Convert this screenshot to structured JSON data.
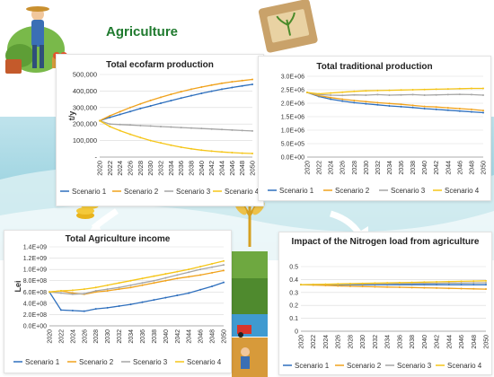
{
  "section_title": "Agriculture",
  "colors": {
    "s1": "#2e6fbd",
    "s2": "#f0a21c",
    "s3": "#a6a6a6",
    "s4": "#f5c518",
    "title_green": "#1f7a2e"
  },
  "chart_data": [
    {
      "type": "line",
      "title": "Total ecofarm production",
      "ylabel": "t/y",
      "ylim": [
        0,
        500000
      ],
      "yticks": [
        "-",
        "100,000",
        "200,000",
        "300,000",
        "400,000",
        "500,000"
      ],
      "x": [
        2020,
        2022,
        2024,
        2026,
        2028,
        2030,
        2032,
        2034,
        2036,
        2038,
        2040,
        2042,
        2044,
        2046,
        2048,
        2050
      ],
      "xticks": [
        "2020",
        "2022",
        "2024",
        "2026",
        "2028",
        "2030",
        "2032",
        "2034",
        "2036",
        "2038",
        "2040",
        "2042",
        "2044",
        "2046",
        "2048",
        "2050"
      ],
      "legend": "bottom",
      "series": [
        {
          "name": "Scenario 1",
          "values": [
            220000,
            240000,
            258000,
            276000,
            294000,
            310000,
            326000,
            342000,
            357000,
            372000,
            386000,
            399000,
            411000,
            421000,
            431000,
            440000
          ]
        },
        {
          "name": "Scenario 2",
          "values": [
            220000,
            250000,
            275000,
            300000,
            322000,
            343000,
            362000,
            380000,
            396000,
            411000,
            424000,
            436000,
            447000,
            456000,
            463000,
            470000
          ]
        },
        {
          "name": "Scenario 3",
          "values": [
            220000,
            200000,
            197000,
            194000,
            191000,
            188000,
            185000,
            182000,
            179000,
            176000,
            173000,
            170000,
            167000,
            164000,
            161000,
            158000
          ]
        },
        {
          "name": "Scenario 4",
          "values": [
            220000,
            185000,
            160000,
            138000,
            118000,
            100000,
            86000,
            72000,
            60000,
            50000,
            42000,
            36000,
            31000,
            27000,
            24000,
            22000
          ]
        }
      ]
    },
    {
      "type": "line",
      "title": "Total traditional production",
      "ylabel": "",
      "ylim": [
        0,
        3000000
      ],
      "yticks": [
        "0.0E+00",
        "5.0E+05",
        "1.0E+06",
        "1.5E+06",
        "2.0E+06",
        "2.5E+06",
        "3.0E+06"
      ],
      "x": [
        2020,
        2022,
        2024,
        2026,
        2028,
        2030,
        2032,
        2034,
        2036,
        2038,
        2040,
        2042,
        2044,
        2046,
        2048,
        2050
      ],
      "xticks": [
        "2020",
        "2022",
        "2024",
        "2026",
        "2028",
        "2030",
        "2032",
        "2034",
        "2036",
        "2038",
        "2040",
        "2042",
        "2044",
        "2046",
        "2048",
        "2050"
      ],
      "legend": "bottom",
      "series": [
        {
          "name": "Scenario 1",
          "values": [
            2400000,
            2250000,
            2150000,
            2080000,
            2020000,
            1980000,
            1940000,
            1900000,
            1870000,
            1840000,
            1800000,
            1770000,
            1740000,
            1710000,
            1680000,
            1650000
          ]
        },
        {
          "name": "Scenario 2",
          "values": [
            2400000,
            2280000,
            2210000,
            2150000,
            2100000,
            2060000,
            2020000,
            1990000,
            1960000,
            1920000,
            1880000,
            1860000,
            1830000,
            1800000,
            1770000,
            1730000
          ]
        },
        {
          "name": "Scenario 3",
          "values": [
            2400000,
            2320000,
            2300000,
            2290000,
            2310000,
            2300000,
            2320000,
            2300000,
            2310000,
            2320000,
            2300000,
            2310000,
            2320000,
            2330000,
            2320000,
            2300000
          ]
        },
        {
          "name": "Scenario 4",
          "values": [
            2400000,
            2350000,
            2380000,
            2410000,
            2440000,
            2460000,
            2470000,
            2480000,
            2490000,
            2500000,
            2510000,
            2520000,
            2530000,
            2540000,
            2550000,
            2550000
          ]
        }
      ]
    },
    {
      "type": "line",
      "title": "Total Agriculture income",
      "ylabel": "Lei",
      "ylim": [
        0,
        1400000000
      ],
      "yticks": [
        "0.0E+00",
        "2.0E+08",
        "4.0E+08",
        "6.0E+08",
        "8.0E+08",
        "1.0E+09",
        "1.2E+09",
        "1.4E+09"
      ],
      "x": [
        2020,
        2022,
        2024,
        2026,
        2028,
        2030,
        2032,
        2034,
        2036,
        2038,
        2040,
        2042,
        2044,
        2046,
        2048,
        2050
      ],
      "xticks": [
        "2020",
        "2022",
        "2024",
        "2026",
        "2028",
        "2030",
        "2032",
        "2034",
        "2036",
        "2038",
        "2040",
        "2042",
        "2044",
        "2046",
        "2048",
        "2050"
      ],
      "legend": "bottom",
      "series": [
        {
          "name": "Scenario 1",
          "values": [
            600000000,
            280000000,
            270000000,
            260000000,
            300000000,
            320000000,
            350000000,
            380000000,
            420000000,
            460000000,
            500000000,
            540000000,
            580000000,
            640000000,
            700000000,
            770000000
          ]
        },
        {
          "name": "Scenario 2",
          "values": [
            600000000,
            620000000,
            580000000,
            560000000,
            600000000,
            620000000,
            650000000,
            680000000,
            720000000,
            760000000,
            800000000,
            840000000,
            870000000,
            900000000,
            940000000,
            980000000
          ]
        },
        {
          "name": "Scenario 3",
          "values": [
            600000000,
            580000000,
            560000000,
            570000000,
            620000000,
            650000000,
            680000000,
            720000000,
            760000000,
            800000000,
            850000000,
            900000000,
            950000000,
            1000000000,
            1040000000,
            1080000000
          ]
        },
        {
          "name": "Scenario 4",
          "values": [
            600000000,
            620000000,
            630000000,
            650000000,
            680000000,
            720000000,
            760000000,
            800000000,
            840000000,
            880000000,
            920000000,
            960000000,
            1000000000,
            1050000000,
            1100000000,
            1150000000
          ]
        }
      ]
    },
    {
      "type": "line",
      "title": "Impact of the Nitrogen load from agriculture",
      "ylabel": "",
      "ylim": [
        0,
        0.5
      ],
      "yticks": [
        "0",
        "0.1",
        "0.2",
        "0.3",
        "0.4",
        "0.5"
      ],
      "x": [
        2020,
        2022,
        2024,
        2026,
        2028,
        2030,
        2032,
        2034,
        2036,
        2038,
        2040,
        2042,
        2044,
        2046,
        2048,
        2050
      ],
      "xticks": [
        "2020",
        "2022",
        "2024",
        "2026",
        "2028",
        "2030",
        "2032",
        "2034",
        "2036",
        "2038",
        "2040",
        "2042",
        "2044",
        "2046",
        "2048",
        "2050"
      ],
      "legend": "bottom",
      "series": [
        {
          "name": "Scenario 1",
          "values": [
            0.36,
            0.36,
            0.36,
            0.36,
            0.36,
            0.36,
            0.36,
            0.36,
            0.36,
            0.36,
            0.36,
            0.36,
            0.36,
            0.36,
            0.36,
            0.36
          ]
        },
        {
          "name": "Scenario 2",
          "values": [
            0.36,
            0.357,
            0.354,
            0.351,
            0.348,
            0.346,
            0.344,
            0.342,
            0.34,
            0.338,
            0.336,
            0.334,
            0.332,
            0.33,
            0.328,
            0.326
          ]
        },
        {
          "name": "Scenario 3",
          "values": [
            0.36,
            0.361,
            0.362,
            0.363,
            0.364,
            0.365,
            0.366,
            0.367,
            0.368,
            0.369,
            0.37,
            0.371,
            0.372,
            0.373,
            0.374,
            0.375
          ]
        },
        {
          "name": "Scenario 4",
          "values": [
            0.36,
            0.362,
            0.364,
            0.366,
            0.368,
            0.37,
            0.372,
            0.374,
            0.376,
            0.378,
            0.38,
            0.382,
            0.384,
            0.386,
            0.388,
            0.39
          ]
        }
      ]
    }
  ]
}
